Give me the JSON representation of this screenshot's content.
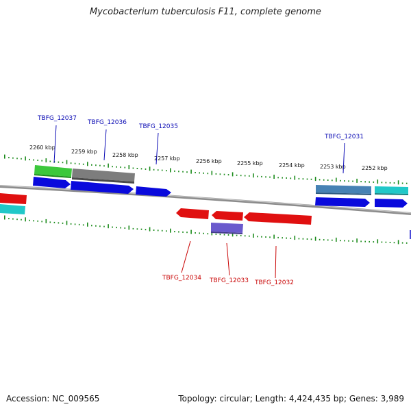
{
  "header": {
    "title": "Mycobacterium tuberculosis F11, complete genome"
  },
  "footer": {
    "accession": "Accession: NC_009565",
    "stats": "Topology: circular; Length: 4,424,435 bp; Genes: 3,989"
  },
  "colors": {
    "forward_label": "#0a0ab4",
    "reverse_label": "#c80000",
    "tick": "#1a8a1a",
    "backbone": "#8c8c8c"
  },
  "ruler": [
    "2260 kbp",
    "2259 kbp",
    "2258 kbp",
    "2257 kbp",
    "2256 kbp",
    "2255 kbp",
    "2254 kbp",
    "2253 kbp",
    "2252 kbp"
  ],
  "labels": {
    "forward": [
      "TBFG_12037",
      "TBFG_12036",
      "TBFG_12035",
      "TBFG_12031"
    ],
    "reverse": [
      "TBFG_12034",
      "TBFG_12033",
      "TBFG_12032"
    ]
  }
}
